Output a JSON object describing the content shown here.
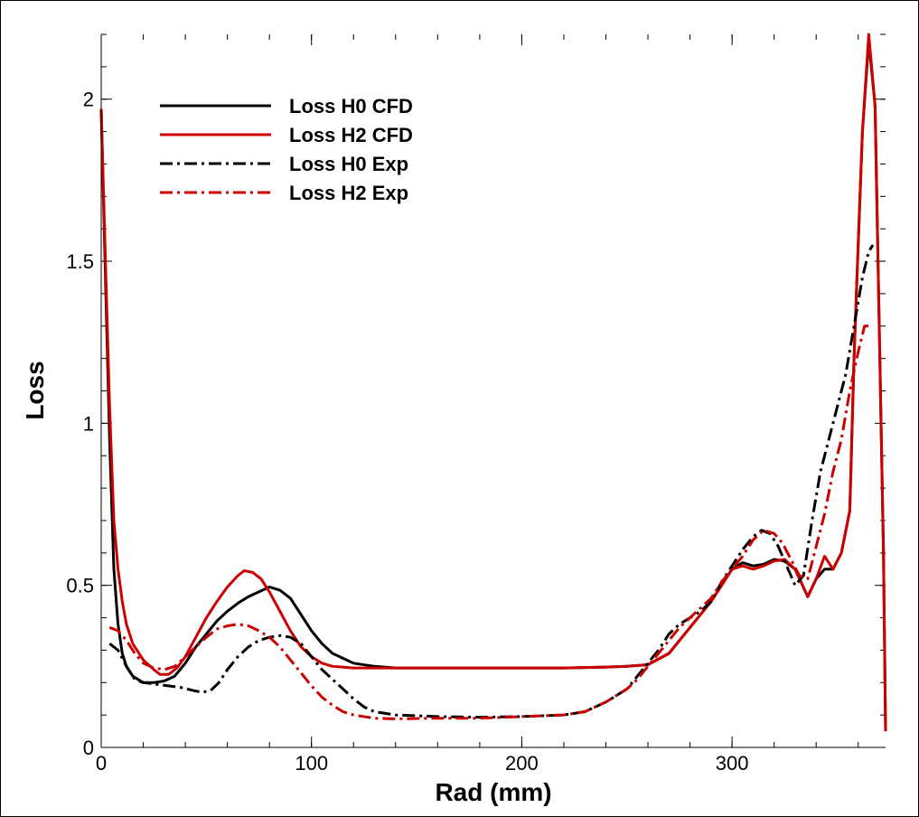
{
  "chart_data": {
    "type": "line",
    "title": "",
    "xlabel": "Rad (mm)",
    "ylabel": "Loss",
    "xlim": [
      0,
      373
    ],
    "ylim": [
      0,
      2.2
    ],
    "x_ticks": [
      0,
      100,
      200,
      300
    ],
    "x_tick_labels": [
      "0",
      "100",
      "200",
      "300"
    ],
    "y_ticks": [
      0,
      0.5,
      1,
      1.5,
      2
    ],
    "y_tick_labels": [
      "0",
      "0.5",
      "1",
      "1.5",
      "2"
    ],
    "x_minor_step": 20,
    "y_minor_step": 0.1,
    "grid": false,
    "legend_position": "top-left",
    "series": [
      {
        "name": "Loss H0 CFD",
        "color": "#000000",
        "dash": "solid",
        "points": [
          [
            0,
            1.97
          ],
          [
            2,
            1.45
          ],
          [
            4,
            0.95
          ],
          [
            6,
            0.55
          ],
          [
            8,
            0.38
          ],
          [
            10,
            0.29
          ],
          [
            12,
            0.25
          ],
          [
            15,
            0.22
          ],
          [
            20,
            0.2
          ],
          [
            25,
            0.2
          ],
          [
            30,
            0.205
          ],
          [
            35,
            0.22
          ],
          [
            40,
            0.26
          ],
          [
            45,
            0.31
          ],
          [
            50,
            0.35
          ],
          [
            55,
            0.39
          ],
          [
            60,
            0.42
          ],
          [
            65,
            0.445
          ],
          [
            70,
            0.465
          ],
          [
            75,
            0.48
          ],
          [
            80,
            0.495
          ],
          [
            85,
            0.485
          ],
          [
            90,
            0.46
          ],
          [
            95,
            0.41
          ],
          [
            100,
            0.36
          ],
          [
            105,
            0.32
          ],
          [
            110,
            0.29
          ],
          [
            115,
            0.275
          ],
          [
            120,
            0.26
          ],
          [
            130,
            0.25
          ],
          [
            140,
            0.245
          ],
          [
            160,
            0.245
          ],
          [
            180,
            0.245
          ],
          [
            200,
            0.245
          ],
          [
            220,
            0.245
          ],
          [
            240,
            0.248
          ],
          [
            250,
            0.25
          ],
          [
            260,
            0.255
          ],
          [
            270,
            0.29
          ],
          [
            280,
            0.37
          ],
          [
            290,
            0.45
          ],
          [
            300,
            0.55
          ],
          [
            305,
            0.57
          ],
          [
            310,
            0.56
          ],
          [
            315,
            0.565
          ],
          [
            320,
            0.58
          ],
          [
            325,
            0.575
          ],
          [
            330,
            0.55
          ],
          [
            336,
            0.465
          ],
          [
            340,
            0.52
          ],
          [
            344,
            0.55
          ],
          [
            348,
            0.55
          ],
          [
            352,
            0.6
          ],
          [
            356,
            0.73
          ],
          [
            358,
            1.2
          ],
          [
            360,
            1.55
          ],
          [
            362,
            1.9
          ],
          [
            365,
            2.18
          ],
          [
            368,
            1.98
          ],
          [
            370,
            1.3
          ],
          [
            372,
            0.6
          ],
          [
            373,
            0.05
          ]
        ]
      },
      {
        "name": "Loss H2 CFD",
        "color": "#cc0000",
        "dash": "solid",
        "points": [
          [
            0,
            1.97
          ],
          [
            2,
            1.5
          ],
          [
            4,
            1.05
          ],
          [
            6,
            0.7
          ],
          [
            8,
            0.55
          ],
          [
            10,
            0.45
          ],
          [
            12,
            0.38
          ],
          [
            15,
            0.32
          ],
          [
            20,
            0.27
          ],
          [
            25,
            0.24
          ],
          [
            28,
            0.225
          ],
          [
            32,
            0.225
          ],
          [
            36,
            0.245
          ],
          [
            40,
            0.28
          ],
          [
            45,
            0.34
          ],
          [
            50,
            0.4
          ],
          [
            55,
            0.45
          ],
          [
            60,
            0.495
          ],
          [
            65,
            0.53
          ],
          [
            68,
            0.545
          ],
          [
            72,
            0.54
          ],
          [
            76,
            0.52
          ],
          [
            80,
            0.48
          ],
          [
            85,
            0.42
          ],
          [
            90,
            0.36
          ],
          [
            95,
            0.31
          ],
          [
            100,
            0.28
          ],
          [
            105,
            0.26
          ],
          [
            110,
            0.25
          ],
          [
            120,
            0.245
          ],
          [
            140,
            0.245
          ],
          [
            160,
            0.245
          ],
          [
            180,
            0.245
          ],
          [
            200,
            0.245
          ],
          [
            220,
            0.245
          ],
          [
            240,
            0.248
          ],
          [
            250,
            0.25
          ],
          [
            260,
            0.255
          ],
          [
            270,
            0.29
          ],
          [
            280,
            0.37
          ],
          [
            290,
            0.45
          ],
          [
            300,
            0.55
          ],
          [
            305,
            0.56
          ],
          [
            310,
            0.55
          ],
          [
            315,
            0.56
          ],
          [
            320,
            0.575
          ],
          [
            325,
            0.58
          ],
          [
            330,
            0.55
          ],
          [
            336,
            0.465
          ],
          [
            340,
            0.52
          ],
          [
            344,
            0.59
          ],
          [
            348,
            0.55
          ],
          [
            352,
            0.6
          ],
          [
            356,
            0.73
          ],
          [
            358,
            1.2
          ],
          [
            360,
            1.55
          ],
          [
            362,
            1.9
          ],
          [
            365,
            2.2
          ],
          [
            368,
            1.98
          ],
          [
            370,
            1.3
          ],
          [
            372,
            0.6
          ],
          [
            373,
            0.05
          ]
        ]
      },
      {
        "name": "Loss H0 Exp",
        "color": "#000000",
        "dash": "dashdot",
        "points": [
          [
            4,
            0.32
          ],
          [
            8,
            0.3
          ],
          [
            12,
            0.25
          ],
          [
            16,
            0.21
          ],
          [
            20,
            0.2
          ],
          [
            26,
            0.195
          ],
          [
            32,
            0.19
          ],
          [
            38,
            0.185
          ],
          [
            44,
            0.175
          ],
          [
            48,
            0.17
          ],
          [
            52,
            0.175
          ],
          [
            56,
            0.2
          ],
          [
            60,
            0.24
          ],
          [
            65,
            0.28
          ],
          [
            70,
            0.31
          ],
          [
            75,
            0.33
          ],
          [
            80,
            0.34
          ],
          [
            85,
            0.345
          ],
          [
            90,
            0.34
          ],
          [
            95,
            0.32
          ],
          [
            100,
            0.28
          ],
          [
            105,
            0.24
          ],
          [
            110,
            0.21
          ],
          [
            115,
            0.18
          ],
          [
            120,
            0.15
          ],
          [
            125,
            0.125
          ],
          [
            130,
            0.11
          ],
          [
            140,
            0.1
          ],
          [
            160,
            0.095
          ],
          [
            180,
            0.093
          ],
          [
            200,
            0.095
          ],
          [
            220,
            0.1
          ],
          [
            230,
            0.11
          ],
          [
            240,
            0.14
          ],
          [
            250,
            0.18
          ],
          [
            255,
            0.22
          ],
          [
            260,
            0.26
          ],
          [
            265,
            0.3
          ],
          [
            270,
            0.35
          ],
          [
            275,
            0.38
          ],
          [
            280,
            0.4
          ],
          [
            285,
            0.42
          ],
          [
            290,
            0.45
          ],
          [
            295,
            0.51
          ],
          [
            300,
            0.56
          ],
          [
            305,
            0.61
          ],
          [
            310,
            0.65
          ],
          [
            314,
            0.67
          ],
          [
            318,
            0.66
          ],
          [
            322,
            0.62
          ],
          [
            326,
            0.56
          ],
          [
            330,
            0.5
          ],
          [
            334,
            0.53
          ],
          [
            338,
            0.7
          ],
          [
            342,
            0.85
          ],
          [
            346,
            0.95
          ],
          [
            350,
            1.05
          ],
          [
            354,
            1.15
          ],
          [
            358,
            1.3
          ],
          [
            362,
            1.45
          ],
          [
            365,
            1.53
          ],
          [
            367,
            1.55
          ]
        ]
      },
      {
        "name": "Loss H2 Exp",
        "color": "#cc0000",
        "dash": "dashdot",
        "points": [
          [
            4,
            0.37
          ],
          [
            8,
            0.36
          ],
          [
            12,
            0.33
          ],
          [
            16,
            0.29
          ],
          [
            20,
            0.26
          ],
          [
            25,
            0.245
          ],
          [
            30,
            0.24
          ],
          [
            35,
            0.25
          ],
          [
            40,
            0.28
          ],
          [
            45,
            0.31
          ],
          [
            50,
            0.34
          ],
          [
            55,
            0.365
          ],
          [
            60,
            0.375
          ],
          [
            65,
            0.38
          ],
          [
            70,
            0.375
          ],
          [
            75,
            0.36
          ],
          [
            80,
            0.34
          ],
          [
            85,
            0.31
          ],
          [
            90,
            0.27
          ],
          [
            95,
            0.23
          ],
          [
            100,
            0.19
          ],
          [
            105,
            0.155
          ],
          [
            110,
            0.13
          ],
          [
            115,
            0.11
          ],
          [
            120,
            0.1
          ],
          [
            130,
            0.09
          ],
          [
            140,
            0.088
          ],
          [
            160,
            0.09
          ],
          [
            180,
            0.09
          ],
          [
            200,
            0.095
          ],
          [
            220,
            0.1
          ],
          [
            230,
            0.11
          ],
          [
            240,
            0.14
          ],
          [
            250,
            0.18
          ],
          [
            255,
            0.21
          ],
          [
            260,
            0.25
          ],
          [
            265,
            0.29
          ],
          [
            270,
            0.33
          ],
          [
            275,
            0.37
          ],
          [
            280,
            0.4
          ],
          [
            285,
            0.43
          ],
          [
            290,
            0.46
          ],
          [
            295,
            0.51
          ],
          [
            300,
            0.55
          ],
          [
            305,
            0.59
          ],
          [
            310,
            0.64
          ],
          [
            315,
            0.67
          ],
          [
            320,
            0.66
          ],
          [
            324,
            0.63
          ],
          [
            328,
            0.58
          ],
          [
            332,
            0.53
          ],
          [
            336,
            0.52
          ],
          [
            340,
            0.62
          ],
          [
            344,
            0.72
          ],
          [
            348,
            0.85
          ],
          [
            352,
            0.95
          ],
          [
            356,
            1.1
          ],
          [
            360,
            1.22
          ],
          [
            363,
            1.3
          ],
          [
            366,
            1.3
          ]
        ]
      }
    ]
  }
}
